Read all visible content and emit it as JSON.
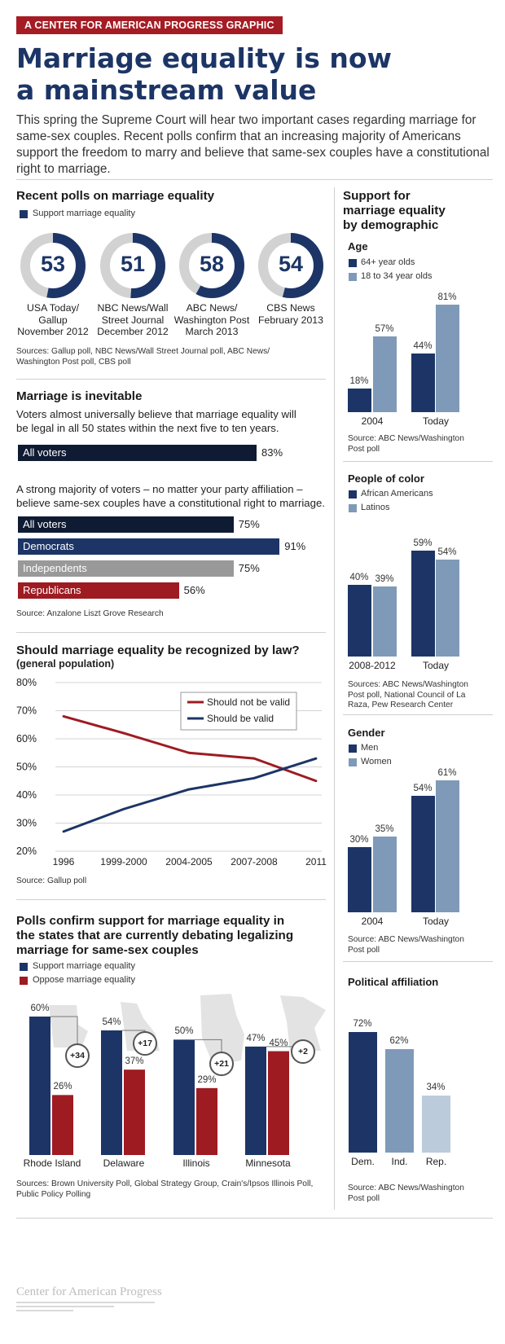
{
  "kicker": "A CENTER FOR AMERICAN PROGRESS GRAPHIC",
  "title_line1": "Marriage equality is now",
  "title_line2": "a mainstream value",
  "intro": "This spring the Supreme Court will hear two important cases regarding marriage for same-sex couples. Recent polls confirm that an increasing majority of Americans support the freedom to marry and believe that same-sex couples have a constitutional right to marriage.",
  "colors": {
    "navy": "#1c3566",
    "red": "#9e1b22",
    "gray": "#999999",
    "lightblue": "#7f9ab8",
    "paleblue": "#bccbdb",
    "ring": "#d2d2d2"
  },
  "polls": {
    "title": "Recent polls on marriage equality",
    "legend": "Support marriage equality",
    "items": [
      {
        "value": 53,
        "label1": "USA Today/",
        "label2": "Gallup",
        "label3": "November 2012"
      },
      {
        "value": 51,
        "label1": "NBC News/Wall",
        "label2": "Street Journal",
        "label3": "December 2012"
      },
      {
        "value": 58,
        "label1": "ABC News/",
        "label2": "Washington Post",
        "label3": "March 2013"
      },
      {
        "value": 54,
        "label1": "CBS News",
        "label2": "February 2013",
        "label3": ""
      }
    ],
    "source1": "Sources: Gallup poll, NBC News/Wall Street Journal poll, ABC News/",
    "source2": "Washington Post poll, CBS poll"
  },
  "inevitable": {
    "title": "Marriage is inevitable",
    "text1": "Voters almost universally believe that marriage equality will",
    "text2": "be legal in all 50 states within the next five to ten years.",
    "bar1": {
      "label": "All voters",
      "value": 83,
      "value_label": "83%"
    },
    "text3": "A strong majority of voters – no matter your party affiliation –",
    "text4": "believe same-sex couples have a constitutional right to marriage.",
    "bars": [
      {
        "label": "All voters",
        "value": 75,
        "value_label": "75%"
      },
      {
        "label": "Democrats",
        "value": 91,
        "value_label": "91%"
      },
      {
        "label": "Independents",
        "value": 75,
        "value_label": "75%"
      },
      {
        "label": "Republicans",
        "value": 56,
        "value_label": "56%"
      }
    ],
    "source": "Source: Anzalone Liszt Grove Research"
  },
  "law": {
    "title": "Should marriage equality be recognized by law?",
    "subtitle": "(general population)",
    "source": "Source: Gallup poll"
  },
  "states": {
    "title1": "Polls confirm support for marriage equality in",
    "title2": "the states that are currently debating legalizing",
    "title3": "marriage for same-sex couples",
    "legend_support": "Support marriage equality",
    "legend_oppose": "Oppose marriage equality",
    "items": [
      {
        "name": "Rhode Island",
        "support": 60,
        "oppose": 26,
        "support_label": "60%",
        "oppose_label": "26%",
        "diff": "+34"
      },
      {
        "name": "Delaware",
        "support": 54,
        "oppose": 37,
        "support_label": "54%",
        "oppose_label": "37%",
        "diff": "+17"
      },
      {
        "name": "Illinois",
        "support": 50,
        "oppose": 29,
        "support_label": "50%",
        "oppose_label": "29%",
        "diff": "+21"
      },
      {
        "name": "Minnesota",
        "support": 47,
        "oppose": 45,
        "support_label": "47%",
        "oppose_label": "45%",
        "diff": "+2"
      }
    ],
    "source1": "Sources: Brown University Poll, Global Strategy Group, Crain's/Ipsos Illinois Poll,",
    "source2": "Public Policy Polling"
  },
  "demo": {
    "title1": "Support for",
    "title2": "marriage equality",
    "title3": "by demographic",
    "age": {
      "title": "Age",
      "legend_a": "64+ year olds",
      "legend_b": "18 to 34 year olds",
      "groups": [
        {
          "cat": "2004",
          "a": 18,
          "b": 57,
          "a_label": "18%",
          "b_label": "57%"
        },
        {
          "cat": "Today",
          "a": 44,
          "b": 81,
          "a_label": "44%",
          "b_label": "81%"
        }
      ],
      "source1": "Source: ABC News/Washington",
      "source2": "Post poll"
    },
    "color": {
      "title": "People of color",
      "legend_a": "African Americans",
      "legend_b": "Latinos",
      "groups": [
        {
          "cat": "2008-2012",
          "a": 40,
          "b": 39,
          "a_label": "40%",
          "b_label": "39%"
        },
        {
          "cat": "Today",
          "a": 59,
          "b": 54,
          "a_label": "59%",
          "b_label": "54%"
        }
      ],
      "source1": "Sources: ABC News/Washington",
      "source2": "Post poll, National Council of La",
      "source3": "Raza, Pew Research Center"
    },
    "gender": {
      "title": "Gender",
      "legend_a": "Men",
      "legend_b": "Women",
      "groups": [
        {
          "cat": "2004",
          "a": 30,
          "b": 35,
          "a_label": "30%",
          "b_label": "35%"
        },
        {
          "cat": "Today",
          "a": 54,
          "b": 61,
          "a_label": "54%",
          "b_label": "61%"
        }
      ],
      "source1": "Source: ABC News/Washington",
      "source2": "Post poll"
    },
    "political": {
      "title": "Political affiliation",
      "bars": [
        {
          "cat": "Dem.",
          "value": 72,
          "label": "72%"
        },
        {
          "cat": "Ind.",
          "value": 62,
          "label": "62%"
        },
        {
          "cat": "Rep.",
          "value": 34,
          "label": "34%"
        }
      ],
      "source1": "Source: ABC News/Washington",
      "source2": "Post poll"
    }
  },
  "footer": "Center for American Progress",
  "chart_data": [
    {
      "type": "pie",
      "title": "Recent polls on marriage equality",
      "legend": [
        "Support marriage equality"
      ],
      "categories": [
        "USA Today/Gallup November 2012",
        "NBC News/Wall Street Journal December 2012",
        "ABC News/Washington Post March 2013",
        "CBS News February 2013"
      ],
      "values": [
        53,
        51,
        58,
        54
      ]
    },
    {
      "type": "bar",
      "title": "Marriage is inevitable",
      "categories": [
        "All voters"
      ],
      "values": [
        83
      ]
    },
    {
      "type": "bar",
      "categories": [
        "All voters",
        "Democrats",
        "Independents",
        "Republicans"
      ],
      "values": [
        75,
        91,
        75,
        56
      ]
    },
    {
      "type": "line",
      "title": "Should marriage equality be recognized by law?",
      "subtitle": "(general population)",
      "x": [
        "1996",
        "1999-2000",
        "2004-2005",
        "2007-2008",
        "2011"
      ],
      "yticks": [
        "20%",
        "30%",
        "40%",
        "50%",
        "60%",
        "70%",
        "80%"
      ],
      "ylim": [
        20,
        80
      ],
      "grid": "horizontal",
      "legend_position": "top-right",
      "series": [
        {
          "name": "Should not be valid",
          "values": [
            68,
            62,
            55,
            53,
            45
          ],
          "color": "#9e1b22"
        },
        {
          "name": "Should be valid",
          "values": [
            27,
            35,
            42,
            46,
            53
          ],
          "color": "#1c3566"
        }
      ]
    },
    {
      "type": "bar",
      "title": "Polls confirm support for marriage equality in the states that are currently debating legalizing marriage for same-sex couples",
      "categories": [
        "Rhode Island",
        "Delaware",
        "Illinois",
        "Minnesota"
      ],
      "series": [
        {
          "name": "Support marriage equality",
          "values": [
            60,
            54,
            50,
            47
          ]
        },
        {
          "name": "Oppose marriage equality",
          "values": [
            26,
            37,
            29,
            45
          ]
        }
      ]
    },
    {
      "type": "bar",
      "title": "Age",
      "categories": [
        "2004",
        "Today"
      ],
      "series": [
        {
          "name": "64+ year olds",
          "values": [
            18,
            44
          ]
        },
        {
          "name": "18 to 34 year olds",
          "values": [
            57,
            81
          ]
        }
      ]
    },
    {
      "type": "bar",
      "title": "People of color",
      "categories": [
        "2008-2012",
        "Today"
      ],
      "series": [
        {
          "name": "African Americans",
          "values": [
            40,
            59
          ]
        },
        {
          "name": "Latinos",
          "values": [
            39,
            54
          ]
        }
      ]
    },
    {
      "type": "bar",
      "title": "Gender",
      "categories": [
        "2004",
        "Today"
      ],
      "series": [
        {
          "name": "Men",
          "values": [
            30,
            54
          ]
        },
        {
          "name": "Women",
          "values": [
            35,
            61
          ]
        }
      ]
    },
    {
      "type": "bar",
      "title": "Political affiliation",
      "categories": [
        "Dem.",
        "Ind.",
        "Rep."
      ],
      "values": [
        72,
        62,
        34
      ]
    }
  ]
}
